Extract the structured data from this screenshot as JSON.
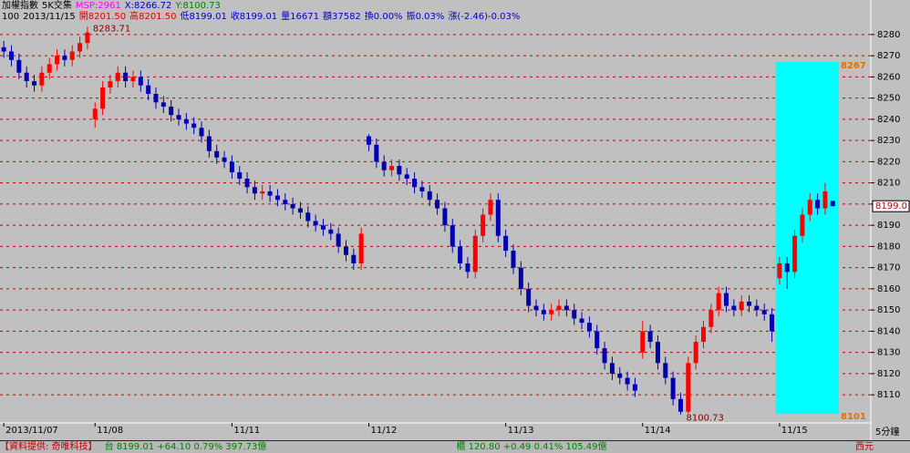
{
  "header": {
    "line1": [
      "加權指數",
      "5K交集",
      "MSP:2961",
      "X:8266.72",
      "Y:8100.73"
    ],
    "line2": [
      "100",
      "2013/11/15",
      "開8201.50",
      "高8201.50",
      "低8199.01",
      "收8199.01",
      "量16671",
      "額37582",
      "換0.00%",
      "振0.03%",
      "漲(-2.46)-0.03%"
    ]
  },
  "status_bar": [
    "【資料提供: 奇唯科技】",
    "台 8199.01 +64.10 0.79% 397.73億",
    "櫃 120.80 +0.49 0.41% 105.49億",
    "西元"
  ],
  "chart_data": {
    "type": "candlestick",
    "up_color": "#ff0000",
    "down_color": "#0000b0",
    "grid": true,
    "ylim": [
      8097.6,
      8287.7
    ],
    "yticks": [
      8110,
      8120,
      8130,
      8140,
      8150,
      8160,
      8170,
      8180,
      8190,
      8200,
      8210,
      8220,
      8230,
      8240,
      8250,
      8260,
      8270,
      8280
    ],
    "xlim": [
      -0.5,
      114
    ],
    "xticks": [
      {
        "value": 0,
        "label": "2013/11/07"
      },
      {
        "value": 12,
        "label": "11/08"
      },
      {
        "value": 30,
        "label": "11/11"
      },
      {
        "value": 48,
        "label": "11/12"
      },
      {
        "value": 66,
        "label": "11/13"
      },
      {
        "value": 84,
        "label": "11/14"
      },
      {
        "value": 102,
        "label": "11/15"
      }
    ],
    "period_label": "5分鐘",
    "last_price_label": "8199.0",
    "range_box": {
      "start": 102,
      "high": 8267,
      "low": 8101,
      "color": "#00ffff"
    },
    "candles": [
      [
        8274,
        8277,
        8269,
        8272
      ],
      [
        8272,
        8275,
        8265,
        8268
      ],
      [
        8268,
        8271,
        8259,
        8262
      ],
      [
        8262,
        8265,
        8255,
        8258
      ],
      [
        8258,
        8261,
        8253,
        8256
      ],
      [
        8256,
        8265,
        8253,
        8262
      ],
      [
        8262,
        8269,
        8259,
        8266
      ],
      [
        8266,
        8273,
        8263,
        8270
      ],
      [
        8270,
        8273,
        8265,
        8268
      ],
      [
        8268,
        8275,
        8265,
        8272
      ],
      [
        8272,
        8279,
        8269,
        8276
      ],
      [
        8276,
        8283.71,
        8273,
        8281
      ],
      [
        8240,
        8248,
        8236,
        8245
      ],
      [
        8245,
        8258,
        8242,
        8255
      ],
      [
        8255,
        8261,
        8252,
        8258
      ],
      [
        8258,
        8265,
        8255,
        8262
      ],
      [
        8262,
        8265,
        8255,
        8258
      ],
      [
        8258,
        8263,
        8255,
        8260
      ],
      [
        8260,
        8263,
        8253,
        8256
      ],
      [
        8256,
        8259,
        8249,
        8252
      ],
      [
        8252,
        8255,
        8245,
        8248
      ],
      [
        8248,
        8251,
        8243,
        8246
      ],
      [
        8246,
        8249,
        8239,
        8242
      ],
      [
        8242,
        8245,
        8237,
        8240
      ],
      [
        8240,
        8243,
        8235,
        8238
      ],
      [
        8238,
        8241,
        8233,
        8236
      ],
      [
        8236,
        8239,
        8229,
        8232
      ],
      [
        8232,
        8235,
        8222,
        8225
      ],
      [
        8225,
        8228,
        8219,
        8222
      ],
      [
        8222,
        8225,
        8217,
        8220
      ],
      [
        8220,
        8223,
        8212,
        8215
      ],
      [
        8215,
        8218,
        8209,
        8212
      ],
      [
        8212,
        8215,
        8205,
        8208
      ],
      [
        8208,
        8211,
        8202,
        8205
      ],
      [
        8205,
        8209,
        8202,
        8206
      ],
      [
        8206,
        8209,
        8201,
        8204
      ],
      [
        8204,
        8207,
        8199,
        8202
      ],
      [
        8202,
        8205,
        8197,
        8200
      ],
      [
        8200,
        8203,
        8195,
        8198
      ],
      [
        8198,
        8201,
        8193,
        8196
      ],
      [
        8196,
        8199,
        8189,
        8192
      ],
      [
        8192,
        8195,
        8187,
        8190
      ],
      [
        8190,
        8193,
        8185,
        8188
      ],
      [
        8188,
        8191,
        8183,
        8186
      ],
      [
        8186,
        8189,
        8177,
        8180
      ],
      [
        8180,
        8183,
        8173,
        8176
      ],
      [
        8176,
        8179,
        8169,
        8172
      ],
      [
        8172,
        8189,
        8169,
        8186
      ],
      [
        8232,
        8233,
        8225,
        8228
      ],
      [
        8228,
        8231,
        8217,
        8220
      ],
      [
        8220,
        8223,
        8213,
        8216
      ],
      [
        8216,
        8221,
        8213,
        8218
      ],
      [
        8218,
        8221,
        8211,
        8214
      ],
      [
        8214,
        8217,
        8209,
        8212
      ],
      [
        8212,
        8215,
        8205,
        8208
      ],
      [
        8208,
        8211,
        8203,
        8206
      ],
      [
        8206,
        8209,
        8199,
        8202
      ],
      [
        8202,
        8205,
        8195,
        8198
      ],
      [
        8198,
        8201,
        8187,
        8190
      ],
      [
        8190,
        8193,
        8177,
        8180
      ],
      [
        8180,
        8183,
        8169,
        8172
      ],
      [
        8172,
        8175,
        8165,
        8168
      ],
      [
        8168,
        8188,
        8165,
        8185
      ],
      [
        8185,
        8198,
        8182,
        8195
      ],
      [
        8195,
        8205,
        8192,
        8202
      ],
      [
        8202,
        8205,
        8182,
        8185
      ],
      [
        8185,
        8188,
        8175,
        8178
      ],
      [
        8178,
        8181,
        8167,
        8170
      ],
      [
        8170,
        8173,
        8157,
        8160
      ],
      [
        8160,
        8163,
        8149,
        8152
      ],
      [
        8152,
        8155,
        8147,
        8150
      ],
      [
        8150,
        8153,
        8145,
        8148
      ],
      [
        8148,
        8153,
        8145,
        8150
      ],
      [
        8150,
        8155,
        8147,
        8152
      ],
      [
        8152,
        8155,
        8147,
        8150
      ],
      [
        8150,
        8153,
        8143,
        8146
      ],
      [
        8146,
        8149,
        8141,
        8144
      ],
      [
        8144,
        8147,
        8137,
        8140
      ],
      [
        8140,
        8143,
        8129,
        8132
      ],
      [
        8132,
        8135,
        8122,
        8125
      ],
      [
        8125,
        8128,
        8117,
        8120
      ],
      [
        8120,
        8123,
        8115,
        8118
      ],
      [
        8118,
        8121,
        8112,
        8115
      ],
      [
        8115,
        8118,
        8109,
        8112
      ],
      [
        8130,
        8145,
        8127,
        8140
      ],
      [
        8140,
        8143,
        8132,
        8135
      ],
      [
        8135,
        8138,
        8122,
        8125
      ],
      [
        8125,
        8128,
        8115,
        8118
      ],
      [
        8118,
        8121,
        8105,
        8108
      ],
      [
        8108,
        8111,
        8100.73,
        8102
      ],
      [
        8102,
        8128,
        8101,
        8125
      ],
      [
        8125,
        8138,
        8122,
        8135
      ],
      [
        8135,
        8145,
        8132,
        8142
      ],
      [
        8142,
        8153,
        8139,
        8150
      ],
      [
        8150,
        8161,
        8147,
        8158
      ],
      [
        8158,
        8161,
        8149,
        8152
      ],
      [
        8152,
        8155,
        8147,
        8150
      ],
      [
        8150,
        8157,
        8147,
        8154
      ],
      [
        8154,
        8157,
        8149,
        8152
      ],
      [
        8152,
        8155,
        8147,
        8150
      ],
      [
        8150,
        8153,
        8145,
        8148
      ],
      [
        8148,
        8151,
        8135,
        8140
      ],
      [
        8165,
        8175,
        8162,
        8172
      ],
      [
        8172,
        8175,
        8160,
        8168
      ],
      [
        8168,
        8188,
        8165,
        8185
      ],
      [
        8185,
        8198,
        8182,
        8195
      ],
      [
        8195,
        8205,
        8192,
        8202
      ],
      [
        8202,
        8205,
        8195,
        8198
      ],
      [
        8198,
        8210,
        8195,
        8206
      ],
      [
        8201.5,
        8201.5,
        8199.01,
        8199.01
      ]
    ]
  }
}
